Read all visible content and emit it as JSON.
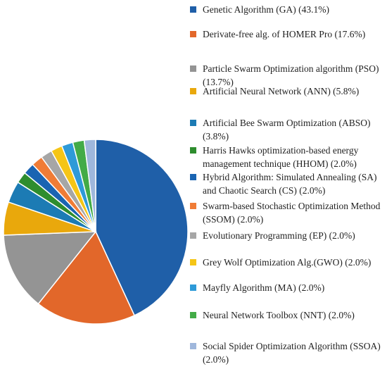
{
  "chart_data": {
    "type": "pie",
    "title": "",
    "series": [
      {
        "values": [
          43.1,
          17.6,
          13.7,
          5.8,
          3.8,
          2.0,
          2.0,
          2.0,
          2.0,
          2.0,
          2.0,
          2.0,
          2.0
        ],
        "labels": [
          "Genetic Algorithm (GA)  (43.1%)",
          "Derivate-free alg. of HOMER Pro (17.6%)",
          "Particle Swarm Optimization algorithm (PSO) (13.7%)",
          "Artificial Neural Network (ANN) (5.8%)",
          "Artificial Bee Swarm Optimization (ABSO) (3.8%)",
          "Harris Hawks optimization-based energy management technique (HHOM) (2.0%)",
          "Hybrid Algorithm: Simulated Annealing (SA) and Chaotic Search (CS) (2.0%)",
          "Swarm-based Stochastic Optimization Method (SSOM) (2.0%)",
          "Evolutionary Programming (EP) (2.0%)",
          "Grey Wolf Optimization Alg.(GWO) (2.0%)",
          "Mayfly Algorithm (MA) (2.0%)",
          "Neural Network Toolbox (NNT) (2.0%)",
          "Social Spider Optimization Algorithm (SSOA) (2.0%)"
        ],
        "colors": [
          "#1f5fa8",
          "#e2672a",
          "#949494",
          "#e9a80c",
          "#1c7bb4",
          "#2e8d2e",
          "#1a64b2",
          "#f07c36",
          "#a6a6a6",
          "#f5c516",
          "#2e9ad8",
          "#43ab47",
          "#9fb7dc"
        ]
      }
    ],
    "legend_placement": "right"
  }
}
